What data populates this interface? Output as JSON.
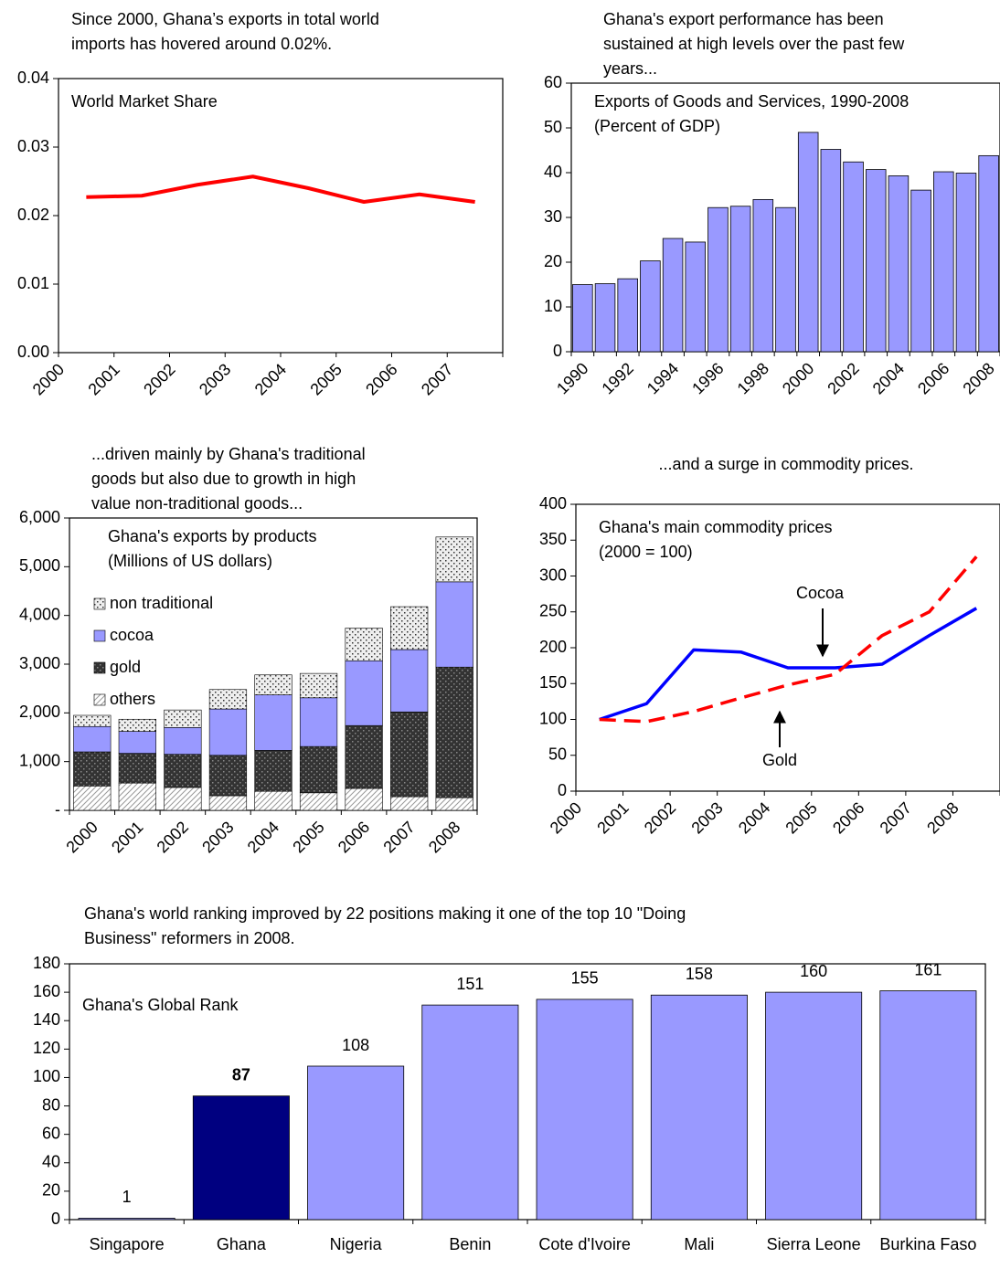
{
  "chart_data": [
    {
      "type": "line",
      "caption": [
        "Since 2000, Ghana’s exports in total world",
        "imports has hovered around 0.02%."
      ],
      "title": "World Market Share",
      "categories": [
        "2000",
        "2001",
        "2002",
        "2003",
        "2004",
        "2005",
        "2006",
        "2007"
      ],
      "values": [
        0.0227,
        0.0229,
        0.0245,
        0.0257,
        0.024,
        0.022,
        0.0231,
        0.022
      ],
      "color": "#ff0000",
      "ylim": [
        0,
        0.04
      ],
      "yticks": [
        {
          "value": 0,
          "label": "0.00"
        },
        0.01,
        0.02,
        0.03,
        0.04
      ]
    },
    {
      "type": "bar",
      "caption": [
        "Ghana's export performance has been",
        "sustained at high levels over the past few",
        "years..."
      ],
      "title": "Exports of Goods and Services, 1990-2008",
      "subtitle": "(Percent of GDP)",
      "categories": [
        "1990",
        null,
        "1992",
        null,
        "1994",
        null,
        "1996",
        null,
        "1998",
        null,
        "2000",
        null,
        "2002",
        null,
        "2004",
        null,
        "2006",
        null,
        "2008"
      ],
      "values": [
        15,
        15.2,
        16.3,
        20.3,
        25.3,
        24.5,
        32.2,
        32.5,
        34,
        32.2,
        49,
        45.2,
        42.4,
        40.7,
        39.3,
        36.1,
        40.2,
        39.9,
        43.8
      ],
      "color": "#9999ff",
      "ylim": [
        0,
        60
      ],
      "yticks": [
        0,
        10,
        20,
        30,
        40,
        50,
        60
      ]
    },
    {
      "type": "stacked_bar",
      "caption": [
        "...driven mainly by Ghana's traditional",
        "goods but also due to growth in high",
        "value non-traditional goods..."
      ],
      "title": "Ghana's exports by products",
      "subtitle": "(Millions of US dollars)",
      "categories": [
        "2000",
        "2001",
        "2002",
        "2003",
        "2004",
        "2005",
        "2006",
        "2007",
        "2008"
      ],
      "series": [
        {
          "name": "others",
          "color": "#ffffff",
          "values": [
            500,
            560,
            470,
            300,
            390,
            360,
            450,
            280,
            260
          ]
        },
        {
          "name": "gold",
          "color": "#333333",
          "values": [
            700,
            610,
            680,
            830,
            840,
            950,
            1290,
            1740,
            2680
          ]
        },
        {
          "name": "cocoa",
          "color": "#9999ff",
          "values": [
            520,
            450,
            550,
            950,
            1140,
            1000,
            1330,
            1280,
            1750
          ]
        },
        {
          "name": "non traditional",
          "color": "#eeeeee",
          "values": [
            230,
            250,
            360,
            400,
            410,
            500,
            670,
            880,
            920
          ]
        }
      ],
      "ylim": [
        0,
        6000
      ],
      "yticks": [
        {
          "value": 0,
          "label": "-"
        },
        {
          "value": 1000,
          "label": "1,000"
        },
        {
          "value": 2000,
          "label": "2,000"
        },
        {
          "value": 3000,
          "label": "3,000"
        },
        {
          "value": 4000,
          "label": "4,000"
        },
        {
          "value": 5000,
          "label": "5,000"
        },
        {
          "value": 6000,
          "label": "6,000"
        }
      ],
      "legend": "upper left"
    },
    {
      "type": "line",
      "caption": [
        "...and a surge in commodity prices."
      ],
      "title": "Ghana's main commodity prices",
      "subtitle": "(2000 = 100)",
      "categories": [
        "2000",
        "2001",
        "2002",
        "2003",
        "2004",
        "2005",
        "2006",
        "2007",
        "2008"
      ],
      "series": [
        {
          "name": "Cocoa",
          "color": "#0000ff",
          "style": "solid",
          "values": [
            100,
            122,
            197,
            194,
            172,
            172,
            177,
            217,
            255
          ]
        },
        {
          "name": "Gold",
          "color": "#ff0000",
          "style": "dashed",
          "values": [
            100,
            97,
            111,
            130,
            148,
            163,
            217,
            250,
            327
          ]
        }
      ],
      "ylim": [
        0,
        400
      ],
      "yticks": [
        0,
        50,
        100,
        150,
        200,
        250,
        300,
        350,
        400
      ]
    },
    {
      "type": "bar",
      "caption": [
        "Ghana's world ranking improved by 22 positions making it one of the top 10 \"Doing",
        "Business\" reformers in 2008."
      ],
      "title": "Ghana's Global Rank",
      "categories": [
        "Singapore",
        "Ghana",
        "Nigeria",
        "Benin",
        "Cote d'Ivoire",
        "Mali",
        "Sierra Leone",
        "Burkina Faso"
      ],
      "values": [
        1,
        87,
        108,
        151,
        155,
        158,
        160,
        161
      ],
      "color": "#9999ff",
      "colors": [
        "#9999ff",
        "#000080",
        "#9999ff",
        "#9999ff",
        "#9999ff",
        "#9999ff",
        "#9999ff",
        "#9999ff"
      ],
      "data_labels": true,
      "ylim": [
        0,
        180
      ],
      "yticks": [
        0,
        20,
        40,
        60,
        80,
        100,
        120,
        140,
        160,
        180
      ]
    }
  ]
}
